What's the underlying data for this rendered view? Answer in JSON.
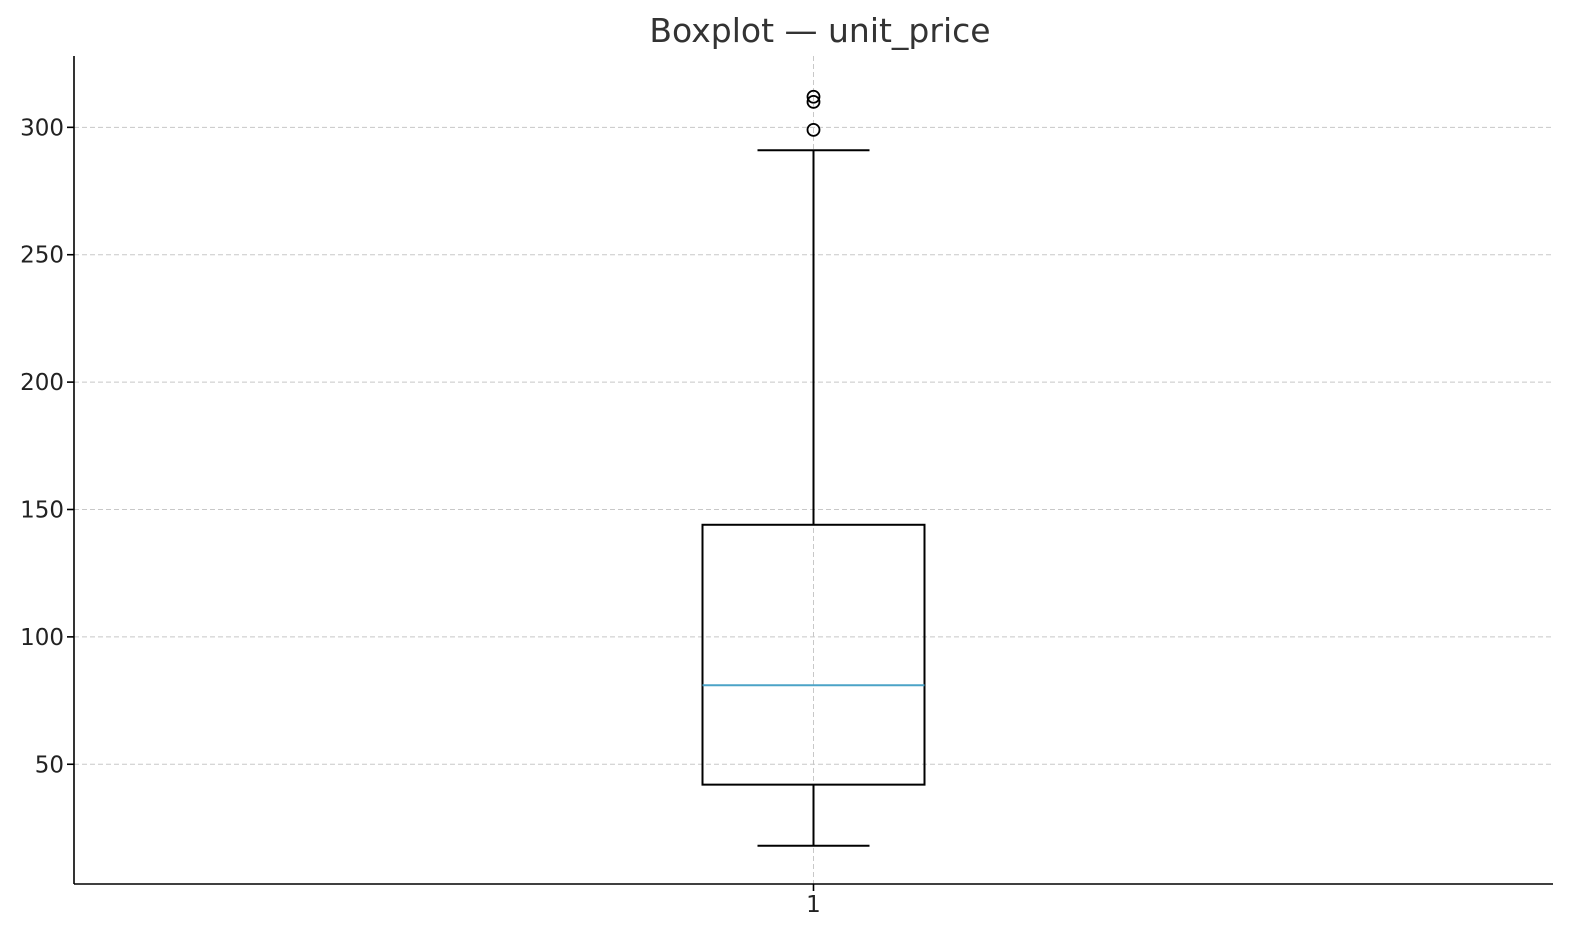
{
  "chart_data": {
    "type": "boxplot",
    "title": "Boxplot — unit_price",
    "xlabel": "",
    "ylabel": "",
    "categories": [
      "1"
    ],
    "ylim": [
      3,
      328
    ],
    "yticks": [
      50,
      100,
      150,
      200,
      250,
      300
    ],
    "grid": true,
    "boxes": [
      {
        "category": "1",
        "whisker_low": 18,
        "q1": 42,
        "median": 81,
        "q3": 144,
        "whisker_high": 291,
        "outliers": [
          299,
          310,
          312
        ]
      }
    ],
    "colors": {
      "box": "#000000",
      "median": "#4ba3c7",
      "grid": "#c8c8c8"
    }
  }
}
